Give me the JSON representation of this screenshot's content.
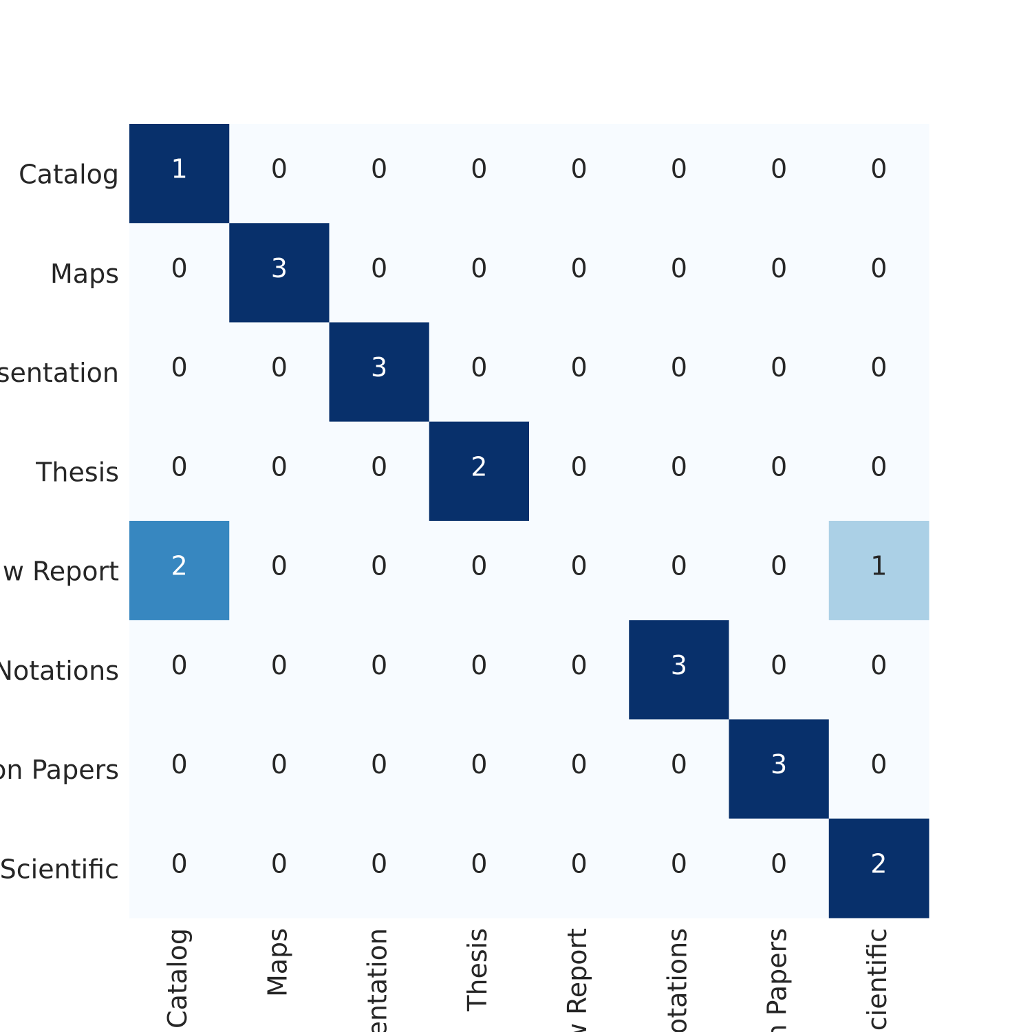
{
  "chart_data": {
    "type": "heatmap",
    "categories": [
      "Catalog",
      "Maps",
      "sentation",
      "Thesis",
      "w Report",
      "Notations",
      "on Papers",
      "Scientific"
    ],
    "matrix": [
      [
        1,
        0,
        0,
        0,
        0,
        0,
        0,
        0
      ],
      [
        0,
        3,
        0,
        0,
        0,
        0,
        0,
        0
      ],
      [
        0,
        0,
        3,
        0,
        0,
        0,
        0,
        0
      ],
      [
        0,
        0,
        0,
        2,
        0,
        0,
        0,
        0
      ],
      [
        2,
        0,
        0,
        0,
        0,
        0,
        0,
        1
      ],
      [
        0,
        0,
        0,
        0,
        0,
        3,
        0,
        0
      ],
      [
        0,
        0,
        0,
        0,
        0,
        0,
        3,
        0
      ],
      [
        0,
        0,
        0,
        0,
        0,
        0,
        0,
        2
      ]
    ],
    "colormap": "Blues",
    "normalize": "row"
  }
}
